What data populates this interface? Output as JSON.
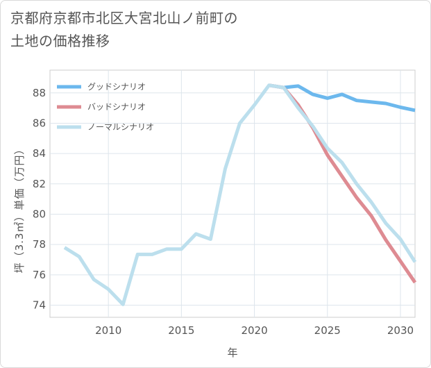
{
  "title_lines": [
    "京都府京都市北区大宮北山ノ前町の",
    "土地の価格推移"
  ],
  "chart_data": {
    "type": "line",
    "title": "京都府京都市北区大宮北山ノ前町の土地の価格推移",
    "xlabel": "年",
    "ylabel": "坪（3.3㎡）単価（万円）",
    "xlim": [
      2006,
      2031
    ],
    "ylim": [
      73.2,
      89.5
    ],
    "xticks": [
      2010,
      2015,
      2020,
      2025,
      2030
    ],
    "yticks": [
      74,
      76,
      78,
      80,
      82,
      84,
      86,
      88
    ],
    "grid": true,
    "legend_position": "top-left",
    "series": [
      {
        "name": "グッドシナリオ",
        "color": "#6cb8ed",
        "x": [
          2021,
          2022,
          2023,
          2024,
          2025,
          2026,
          2027,
          2028,
          2029,
          2030,
          2031
        ],
        "values": [
          88.5,
          88.35,
          88.45,
          87.9,
          87.65,
          87.9,
          87.5,
          87.4,
          87.3,
          87.05,
          86.85
        ]
      },
      {
        "name": "バッドシナリオ",
        "color": "#de8b92",
        "x": [
          2021,
          2022,
          2023,
          2024,
          2025,
          2026,
          2027,
          2028,
          2029,
          2030,
          2031
        ],
        "values": [
          88.5,
          88.35,
          87.2,
          85.7,
          83.9,
          82.5,
          81.1,
          79.9,
          78.3,
          76.9,
          75.5
        ]
      },
      {
        "name": "ノーマルシナリオ",
        "color": "#bcdfed",
        "x": [
          2007,
          2008,
          2009,
          2010,
          2011,
          2012,
          2013,
          2014,
          2015,
          2016,
          2017,
          2018,
          2019,
          2020,
          2021,
          2022,
          2023,
          2024,
          2025,
          2026,
          2027,
          2028,
          2029,
          2030,
          2031
        ],
        "values": [
          77.8,
          77.2,
          75.7,
          75.05,
          74.05,
          77.35,
          77.35,
          77.7,
          77.7,
          78.7,
          78.35,
          83.0,
          86.0,
          87.2,
          88.5,
          88.35,
          87.0,
          85.8,
          84.35,
          83.4,
          82.0,
          80.8,
          79.4,
          78.35,
          76.85
        ]
      }
    ]
  }
}
